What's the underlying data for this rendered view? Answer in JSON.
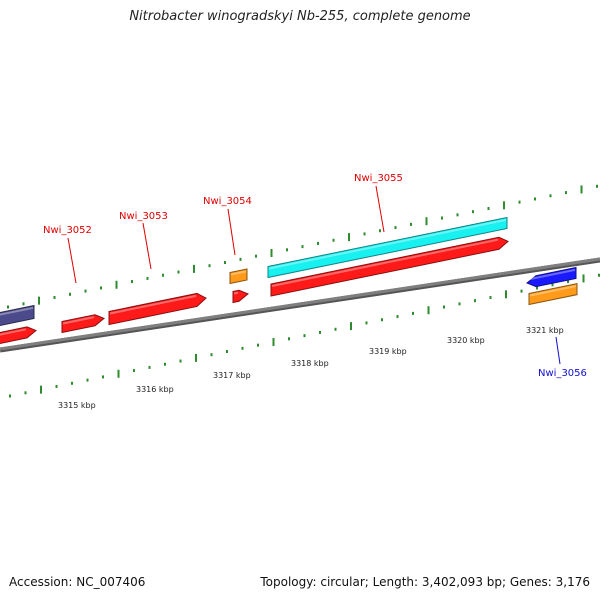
{
  "title": "Nitrobacter winogradskyi Nb-255, complete genome",
  "footer": {
    "accession": "Accession: NC_007406",
    "summary": "Topology: circular; Length: 3,402,093 bp; Genes: 3,176"
  },
  "colors": {
    "backbone": "#7f7f7f",
    "tick": "#2e8b2e",
    "gene_red": "#ff1a1a",
    "gene_cyan": "#19f0f0",
    "gene_orange": "#ff9a1a",
    "gene_blue": "#1a1aff",
    "gene_slate": "#4b4a8a",
    "label_red": "#e00000",
    "label_blue": "#1010d0"
  },
  "scale": {
    "labels": [
      {
        "text": "3315 kbp"
      },
      {
        "text": "3316 kbp"
      },
      {
        "text": "3317 kbp"
      },
      {
        "text": "3318 kbp"
      },
      {
        "text": "3319 kbp"
      },
      {
        "text": "3320 kbp"
      },
      {
        "text": "3321 kbp"
      }
    ]
  },
  "genes": [
    {
      "id": "Nwi_3052",
      "label": "Nwi_3052",
      "color": "gene_red",
      "strand": "+",
      "labelColor": "label_red"
    },
    {
      "id": "Nwi_3053",
      "label": "Nwi_3053",
      "color": "gene_red",
      "strand": "+",
      "labelColor": "label_red"
    },
    {
      "id": "Nwi_3054",
      "label": "Nwi_3054",
      "color": "gene_red",
      "strand": "+",
      "labelColor": "label_red"
    },
    {
      "id": "Nwi_3055",
      "label": "Nwi_3055",
      "color": "gene_red",
      "strand": "+",
      "labelColor": "label_red"
    },
    {
      "id": "Nwi_3056",
      "label": "Nwi_3056",
      "color": "gene_blue",
      "strand": "-",
      "labelColor": "label_blue"
    }
  ]
}
